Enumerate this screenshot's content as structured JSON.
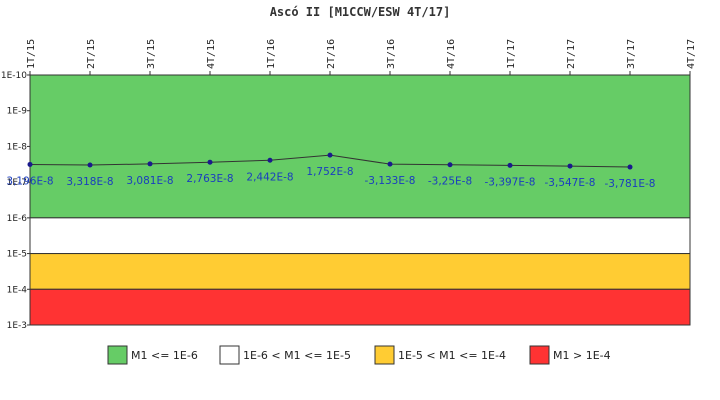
{
  "chart_data": {
    "type": "line",
    "title": "Ascó II [M1CCW/ESW 4T/17]",
    "y_scale": "log",
    "y_inverted": true,
    "ylim": [
      1e-10,
      0.001
    ],
    "ytick_labels": [
      "1E-10",
      "1E-9",
      "1E-8",
      "1E-7",
      "1E-6",
      "1E-5",
      "1E-4",
      "1E-3"
    ],
    "categories": [
      "1T/15",
      "2T/15",
      "3T/15",
      "4T/15",
      "1T/16",
      "2T/16",
      "3T/16",
      "4T/16",
      "1T/17",
      "2T/17",
      "3T/17",
      "4T/17"
    ],
    "series": [
      {
        "values": [
          3.196e-08,
          3.318e-08,
          3.081e-08,
          2.763e-08,
          2.442e-08,
          1.752e-08,
          -3.133e-08,
          -3.25e-08,
          -3.397e-08,
          -3.547e-08,
          -3.781e-08,
          null
        ],
        "labels": [
          "3,196E-8",
          "3,318E-8",
          "3,081E-8",
          "2,763E-8",
          "2,442E-8",
          "1,752E-8",
          "-3,133E-8",
          "-3,25E-8",
          "-3,397E-8",
          "-3,547E-8",
          "-3,781E-8",
          ""
        ]
      }
    ],
    "bands": [
      {
        "from": 1e-10,
        "to": 1e-06,
        "color": "#66cc66",
        "legend": "M1 <= 1E-6"
      },
      {
        "from": 1e-06,
        "to": 1e-05,
        "color": "#ffffff",
        "legend": "1E-6 < M1 <= 1E-5"
      },
      {
        "from": 1e-05,
        "to": 0.0001,
        "color": "#ffcc33",
        "legend": "1E-5 < M1 <= 1E-4"
      },
      {
        "from": 0.0001,
        "to": 0.001,
        "color": "#ff3333",
        "legend": "M1 > 1E-4"
      }
    ],
    "line_color": "#333333",
    "marker_color": "#1a1a8c",
    "grid": false,
    "legend_position": "bottom"
  }
}
